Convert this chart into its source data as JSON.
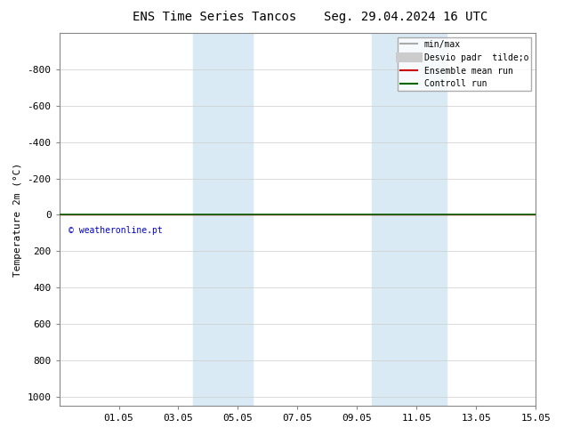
{
  "title_left": "ENS Time Series Tancos",
  "title_right": "Seg. 29.04.2024 16 UTC",
  "ylabel": "Temperature 2m (°C)",
  "ylim_bottom": 1050,
  "ylim_top": -1000,
  "yticks": [
    -800,
    -600,
    -400,
    -200,
    0,
    200,
    400,
    600,
    800,
    1000
  ],
  "xlim": [
    0,
    16
  ],
  "xtick_labels": [
    "01.05",
    "03.05",
    "05.05",
    "07.05",
    "09.05",
    "11.05",
    "13.05",
    "15.05"
  ],
  "xtick_positions": [
    2,
    4,
    6,
    8,
    10,
    12,
    14,
    16
  ],
  "shaded_bands": [
    {
      "xstart": 4.5,
      "xend": 5.5
    },
    {
      "xstart": 5.5,
      "xend": 6.5
    },
    {
      "xstart": 10.5,
      "xend": 11.5
    },
    {
      "xstart": 11.5,
      "xend": 13.0
    }
  ],
  "green_line_y": 0,
  "red_line_y": 0,
  "copyright_text": "© weatheronline.pt",
  "copyright_color": "#0000cc",
  "legend_entries": [
    {
      "label": "min/max",
      "color": "#aaaaaa",
      "lw": 1.5,
      "type": "line"
    },
    {
      "label": "Desvio padr  tilde;o",
      "color": "#cccccc",
      "lw": 8,
      "type": "line"
    },
    {
      "label": "Ensemble mean run",
      "color": "#cc0000",
      "lw": 1.5,
      "type": "line"
    },
    {
      "label": "Controll run",
      "color": "#006600",
      "lw": 1.5,
      "type": "line"
    }
  ],
  "bg_color": "#ffffff",
  "grid_color": "#cccccc",
  "shaded_color": "#daeaf5",
  "title_fontsize": 10,
  "axis_fontsize": 8,
  "font_family": "monospace"
}
